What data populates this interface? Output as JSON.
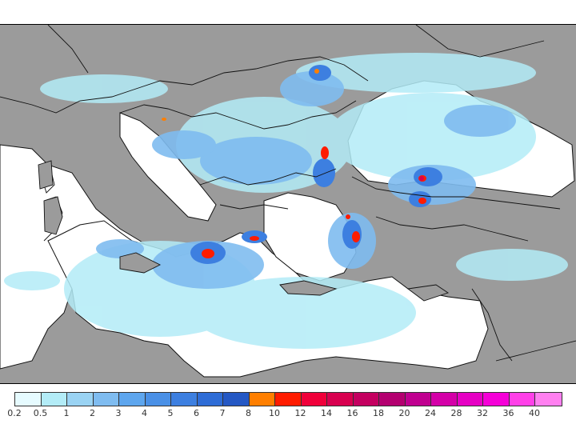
{
  "colors": {
    "land": "#9b9b9b",
    "sea": "#ffffff",
    "border": "#111111"
  },
  "legend": {
    "labels": [
      "0.2",
      "0.5",
      "1",
      "2",
      "3",
      "4",
      "5",
      "6",
      "7",
      "8",
      "10",
      "12",
      "14",
      "16",
      "18",
      "20",
      "24",
      "28",
      "32",
      "36",
      "40"
    ],
    "colors": [
      "#e6fbff",
      "#b3ecf7",
      "#9ad3f3",
      "#7fbcf0",
      "#5ea6ee",
      "#4a90e6",
      "#3d7fe0",
      "#2e6cd6",
      "#2558c4",
      "#ff7f00",
      "#ff1c00",
      "#f0003a",
      "#d8004f",
      "#c40060",
      "#b40070",
      "#c00090",
      "#d400a8",
      "#e600c4",
      "#f500d8",
      "#ff40e8",
      "#ff80f0"
    ]
  }
}
